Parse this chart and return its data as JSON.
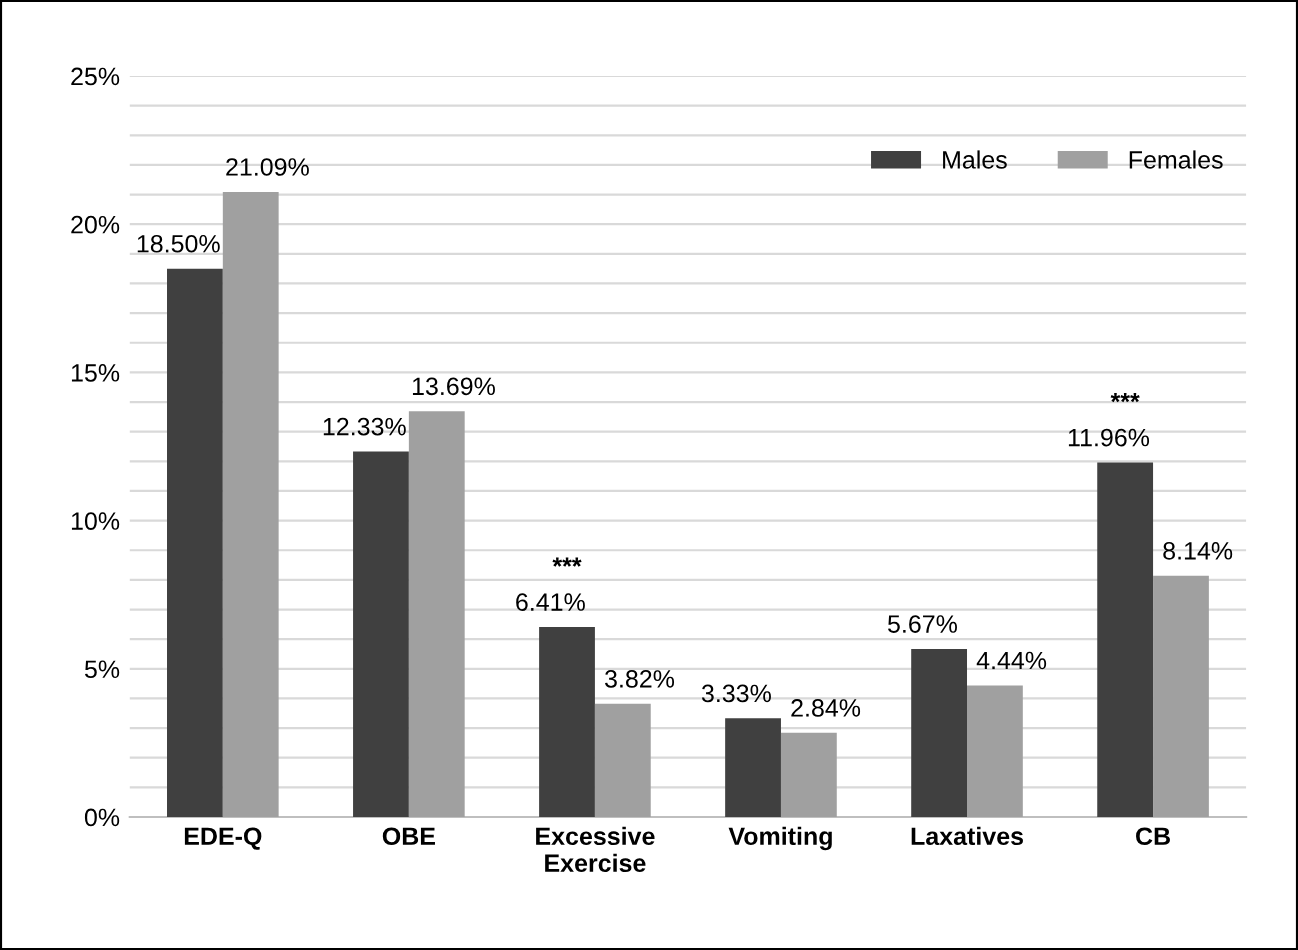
{
  "chart_data": {
    "type": "bar",
    "categories": [
      "EDE-Q",
      "OBE",
      "Excessive\nExercise",
      "Vomiting",
      "Laxatives",
      "CB"
    ],
    "series": [
      {
        "name": "Males",
        "color": "#404040",
        "values": [
          18.5,
          12.33,
          6.41,
          3.33,
          5.67,
          11.96
        ],
        "value_labels": [
          "18.50%",
          "12.33%",
          "6.41%",
          "3.33%",
          "5.67%",
          "11.96%"
        ]
      },
      {
        "name": "Females",
        "color": "#a0a0a0",
        "values": [
          21.09,
          13.69,
          3.82,
          2.84,
          4.44,
          8.14
        ],
        "value_labels": [
          "21.09%",
          "13.69%",
          "3.82%",
          "2.84%",
          "4.44%",
          "8.14%"
        ]
      }
    ],
    "ylim": [
      0,
      25
    ],
    "yticks": [
      {
        "value": 0,
        "label": "0%"
      },
      {
        "value": 1,
        "label": null
      },
      {
        "value": 2,
        "label": null
      },
      {
        "value": 3,
        "label": null
      },
      {
        "value": 4,
        "label": null
      },
      {
        "value": 5,
        "label": "5%"
      },
      {
        "value": 6,
        "label": null
      },
      {
        "value": 7,
        "label": null
      },
      {
        "value": 8,
        "label": null
      },
      {
        "value": 9,
        "label": null
      },
      {
        "value": 10,
        "label": "10%"
      },
      {
        "value": 11,
        "label": null
      },
      {
        "value": 12,
        "label": null
      },
      {
        "value": 13,
        "label": null
      },
      {
        "value": 14,
        "label": null
      },
      {
        "value": 15,
        "label": "15%"
      },
      {
        "value": 16,
        "label": null
      },
      {
        "value": 17,
        "label": null
      },
      {
        "value": 18,
        "label": null
      },
      {
        "value": 19,
        "label": null
      },
      {
        "value": 20,
        "label": "20%"
      },
      {
        "value": 21,
        "label": null
      },
      {
        "value": 22,
        "label": null
      },
      {
        "value": 23,
        "label": null
      },
      {
        "value": 24,
        "label": null
      },
      {
        "value": 25,
        "label": "25%"
      }
    ],
    "grid": "y",
    "legend": "top right",
    "annotations": [
      {
        "text": "***",
        "x": "Excessive\nExercise",
        "y": 6.41
      },
      {
        "text": "***",
        "x": "CB",
        "y": 11.96
      }
    ]
  }
}
